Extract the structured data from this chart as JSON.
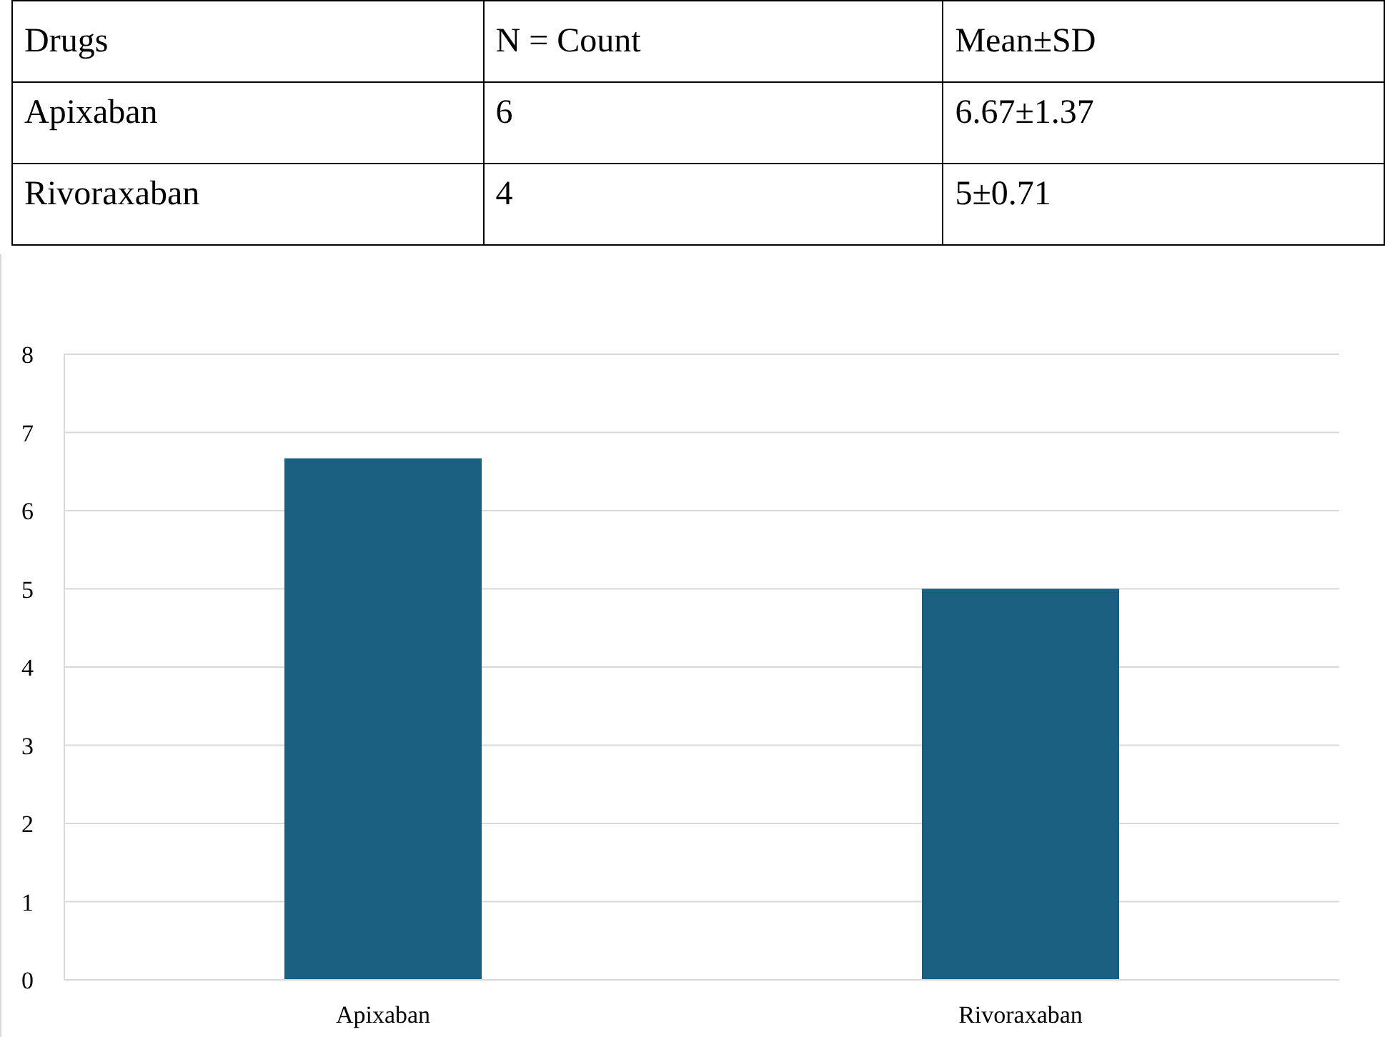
{
  "chart_data": [
    {
      "type": "other",
      "annotations": [
        "Drugs",
        "N = Count",
        "Mean±SD",
        "Apixaban",
        "6",
        "6.67±1.37",
        "Rivoraxaban",
        "4",
        "5±0.71"
      ]
    },
    {
      "type": "bar",
      "categories": [
        "Apixaban",
        "Rivoraxaban"
      ],
      "values": [
        6.67,
        5
      ],
      "color": "#1a5f80",
      "ylim": [
        0,
        8
      ],
      "yticks": [
        0,
        1,
        2,
        3,
        4,
        5,
        6,
        7,
        8
      ],
      "grid": "y"
    }
  ]
}
